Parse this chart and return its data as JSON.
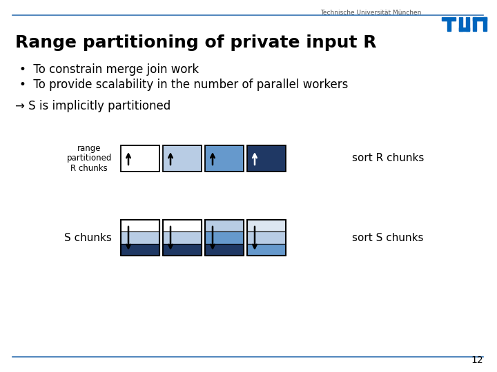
{
  "title": "Range partitioning of private input R",
  "bullet1": "To constrain merge join work",
  "bullet2": "To provide scalability in the number of parallel workers",
  "arrow_text": "→ S is implicitly partitioned",
  "label_r": "range\npartitioned\nR chunks",
  "label_s": "S chunks",
  "sort_r": "sort R chunks",
  "sort_s": "sort S chunks",
  "header_text": "Technische Universität München",
  "page_num": "12",
  "bg_color": "#ffffff",
  "header_line_color": "#3070b0",
  "title_color": "#000000",
  "r_chunk_colors": [
    "#ffffff",
    "#b8cce4",
    "#6699cc",
    "#1f3864"
  ],
  "r_chunk_border": "#000000",
  "s_chunk_colors_top": [
    "#ffffff",
    "#ffffff",
    "#b8cce4",
    "#dce6f1"
  ],
  "s_chunk_colors_mid": [
    "#b8cce4",
    "#b8cce4",
    "#6699cc",
    "#b8cce4"
  ],
  "s_chunk_colors_bot": [
    "#1f3864",
    "#1f3864",
    "#1f3864",
    "#6699cc"
  ],
  "tum_blue": "#0065bd"
}
